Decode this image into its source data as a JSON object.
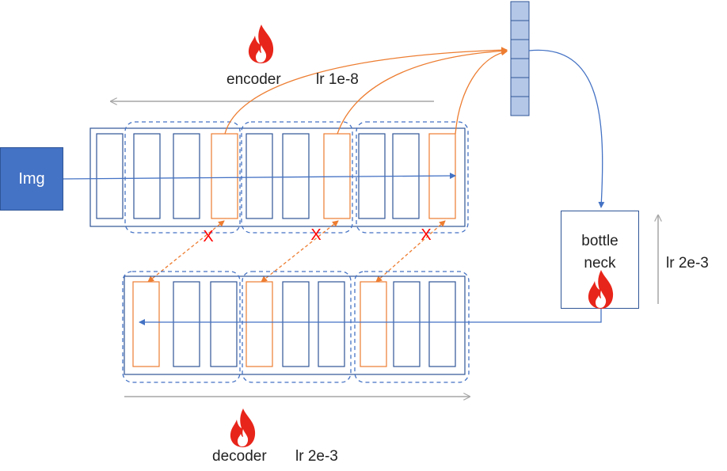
{
  "input": {
    "label": "Img"
  },
  "encoder": {
    "name": "encoder",
    "lr": "lr 1e-8"
  },
  "decoder": {
    "name": "decoder",
    "lr": "lr 2e-3"
  },
  "bottleneck": {
    "label": "bottle\nneck",
    "lr": "lr 2e-3"
  },
  "skip_marker": "X",
  "colors": {
    "block_stroke": "#2f5597",
    "highlight_stroke": "#ed7d31",
    "group_stroke": "#4472c4",
    "arrow_gray": "#a6a6a6",
    "cross_red": "#ff0000",
    "vector_fill": "#b4c7e7",
    "flame": "#e8251a"
  },
  "icons": [
    "flame-icon"
  ]
}
